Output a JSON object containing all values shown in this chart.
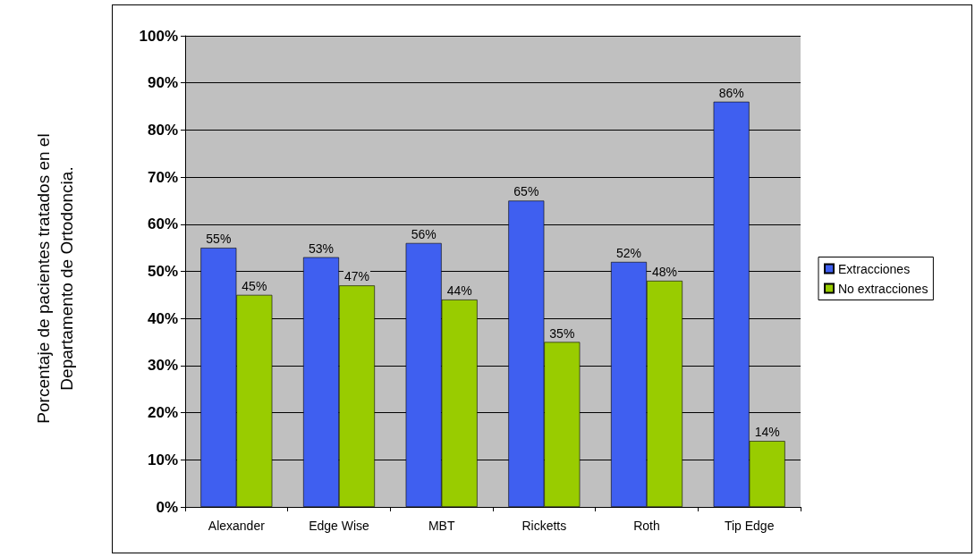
{
  "chart_data": {
    "type": "bar",
    "ylabel": "Porcentaje de pacientes tratados en el\nDepartamento de Ortodoncia.",
    "categories": [
      "Alexander",
      "Edge Wise",
      "MBT",
      "Ricketts",
      "Roth",
      "Tip Edge"
    ],
    "series": [
      {
        "name": "Extracciones",
        "color": "#3f5ff0",
        "values": [
          55,
          53,
          56,
          65,
          52,
          86
        ],
        "value_labels": [
          "55%",
          "53%",
          "56%",
          "65%",
          "52%",
          "86%"
        ]
      },
      {
        "name": "No extracciones",
        "color": "#99cc00",
        "values": [
          45,
          47,
          44,
          35,
          48,
          14
        ],
        "value_labels": [
          "45%",
          "47%",
          "44%",
          "35%",
          "48%",
          "14%"
        ]
      }
    ],
    "ylim": [
      0,
      100
    ],
    "yticks": [
      {
        "value": 0,
        "label": "0%"
      },
      {
        "value": 10,
        "label": "10%"
      },
      {
        "value": 20,
        "label": "20%"
      },
      {
        "value": 30,
        "label": "30%"
      },
      {
        "value": 40,
        "label": "40%"
      },
      {
        "value": 50,
        "label": "50%"
      },
      {
        "value": 60,
        "label": "60%"
      },
      {
        "value": 70,
        "label": "70%"
      },
      {
        "value": 80,
        "label": "80%"
      },
      {
        "value": 90,
        "label": "90%"
      },
      {
        "value": 100,
        "label": "100%"
      }
    ],
    "grid": "y",
    "legend": "right"
  }
}
